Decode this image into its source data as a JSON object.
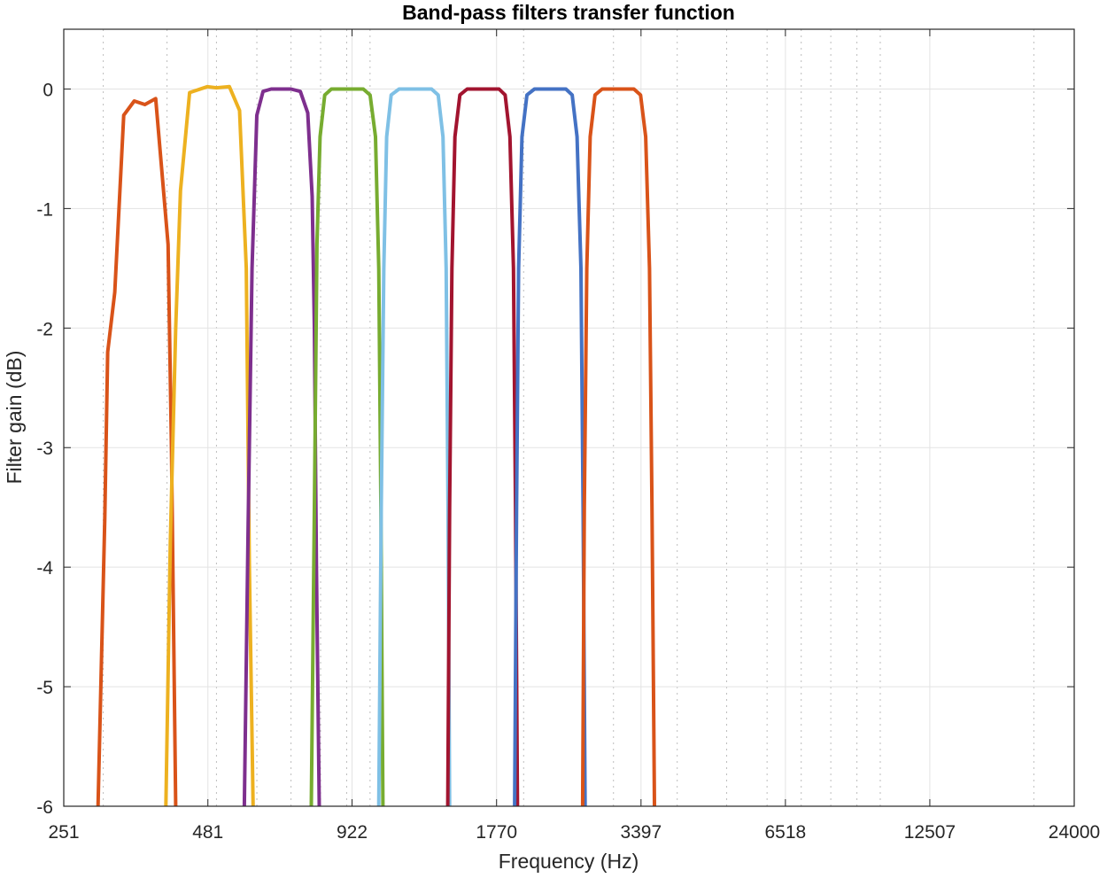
{
  "chart_data": {
    "type": "line",
    "title": "Band-pass filters transfer function",
    "xlabel": "Frequency (Hz)",
    "ylabel": "Filter gain (dB)",
    "xscale": "log",
    "xlim": [
      251,
      24000
    ],
    "ylim": [
      -6,
      0.5
    ],
    "x_ticks": [
      251,
      481,
      922,
      1770,
      3397,
      6518,
      12507,
      24000
    ],
    "x_tick_labels": [
      "251",
      "481",
      "922",
      "1770",
      "3397",
      "6518",
      "12507",
      "24000"
    ],
    "y_ticks": [
      0,
      -1,
      -2,
      -3,
      -4,
      -5,
      -6
    ],
    "y_tick_labels": [
      "0",
      "-1",
      "-2",
      "-3",
      "-4",
      "-5",
      "-6"
    ],
    "grid": true,
    "legend": "none",
    "series": [
      {
        "color": "#D95319",
        "points": [
          [
            293,
            -6
          ],
          [
            302,
            -3.6
          ],
          [
            306,
            -2.2
          ],
          [
            316,
            -1.7
          ],
          [
            329,
            -0.22
          ],
          [
            345,
            -0.1
          ],
          [
            362,
            -0.13
          ],
          [
            380,
            -0.08
          ],
          [
            402,
            -1.3
          ],
          [
            408,
            -3.0
          ],
          [
            416,
            -6
          ]
        ]
      },
      {
        "color": "#EDB120",
        "points": [
          [
            398,
            -6
          ],
          [
            406,
            -3.8
          ],
          [
            416,
            -2.0
          ],
          [
            425,
            -0.85
          ],
          [
            443,
            -0.03
          ],
          [
            480,
            0.02
          ],
          [
            500,
            0.01
          ],
          [
            530,
            0.02
          ],
          [
            555,
            -0.18
          ],
          [
            572,
            -1.5
          ],
          [
            580,
            -4.0
          ],
          [
            590,
            -6
          ]
        ]
      },
      {
        "color": "#7E2F8E",
        "points": [
          [
            567,
            -6
          ],
          [
            577,
            -3.6
          ],
          [
            587,
            -1.5
          ],
          [
            600,
            -0.22
          ],
          [
            617,
            -0.02
          ],
          [
            640,
            0.0
          ],
          [
            700,
            0.0
          ],
          [
            730,
            -0.02
          ],
          [
            755,
            -0.2
          ],
          [
            770,
            -0.9
          ],
          [
            778,
            -2.0
          ],
          [
            785,
            -4.0
          ],
          [
            795,
            -6
          ]
        ]
      },
      {
        "color": "#77AC30",
        "points": [
          [
            767,
            -6
          ],
          [
            778,
            -3.5
          ],
          [
            787,
            -1.3
          ],
          [
            798,
            -0.4
          ],
          [
            815,
            -0.05
          ],
          [
            840,
            0.0
          ],
          [
            970,
            0.0
          ],
          [
            1000,
            -0.05
          ],
          [
            1025,
            -0.4
          ],
          [
            1040,
            -1.5
          ],
          [
            1050,
            -3.5
          ],
          [
            1060,
            -6
          ]
        ]
      },
      {
        "color": "#7FC0E5",
        "points": [
          [
            1040,
            -6
          ],
          [
            1052,
            -3.5
          ],
          [
            1064,
            -1.5
          ],
          [
            1078,
            -0.4
          ],
          [
            1100,
            -0.05
          ],
          [
            1140,
            0.0
          ],
          [
            1320,
            0.0
          ],
          [
            1360,
            -0.05
          ],
          [
            1390,
            -0.4
          ],
          [
            1410,
            -1.5
          ],
          [
            1422,
            -3.5
          ],
          [
            1432,
            -6
          ]
        ]
      },
      {
        "color": "#A2142F",
        "points": [
          [
            1420,
            -6
          ],
          [
            1432,
            -3.5
          ],
          [
            1447,
            -1.5
          ],
          [
            1467,
            -0.4
          ],
          [
            1500,
            -0.05
          ],
          [
            1550,
            0.0
          ],
          [
            1790,
            0.0
          ],
          [
            1840,
            -0.05
          ],
          [
            1880,
            -0.4
          ],
          [
            1910,
            -1.5
          ],
          [
            1928,
            -3.5
          ],
          [
            1945,
            -6
          ]
        ]
      },
      {
        "color": "#4472C4",
        "points": [
          [
            1920,
            -6
          ],
          [
            1937,
            -3.5
          ],
          [
            1955,
            -1.5
          ],
          [
            1985,
            -0.4
          ],
          [
            2030,
            -0.05
          ],
          [
            2100,
            0.0
          ],
          [
            2420,
            0.0
          ],
          [
            2490,
            -0.05
          ],
          [
            2545,
            -0.4
          ],
          [
            2590,
            -1.5
          ],
          [
            2615,
            -3.5
          ],
          [
            2640,
            -6
          ]
        ]
      },
      {
        "color": "#D95319",
        "points": [
          [
            2610,
            -6
          ],
          [
            2630,
            -3.5
          ],
          [
            2660,
            -1.5
          ],
          [
            2700,
            -0.4
          ],
          [
            2760,
            -0.05
          ],
          [
            2850,
            0.0
          ],
          [
            3290,
            0.0
          ],
          [
            3390,
            -0.05
          ],
          [
            3470,
            -0.4
          ],
          [
            3530,
            -1.5
          ],
          [
            3570,
            -3.5
          ],
          [
            3610,
            -6
          ]
        ]
      }
    ]
  }
}
